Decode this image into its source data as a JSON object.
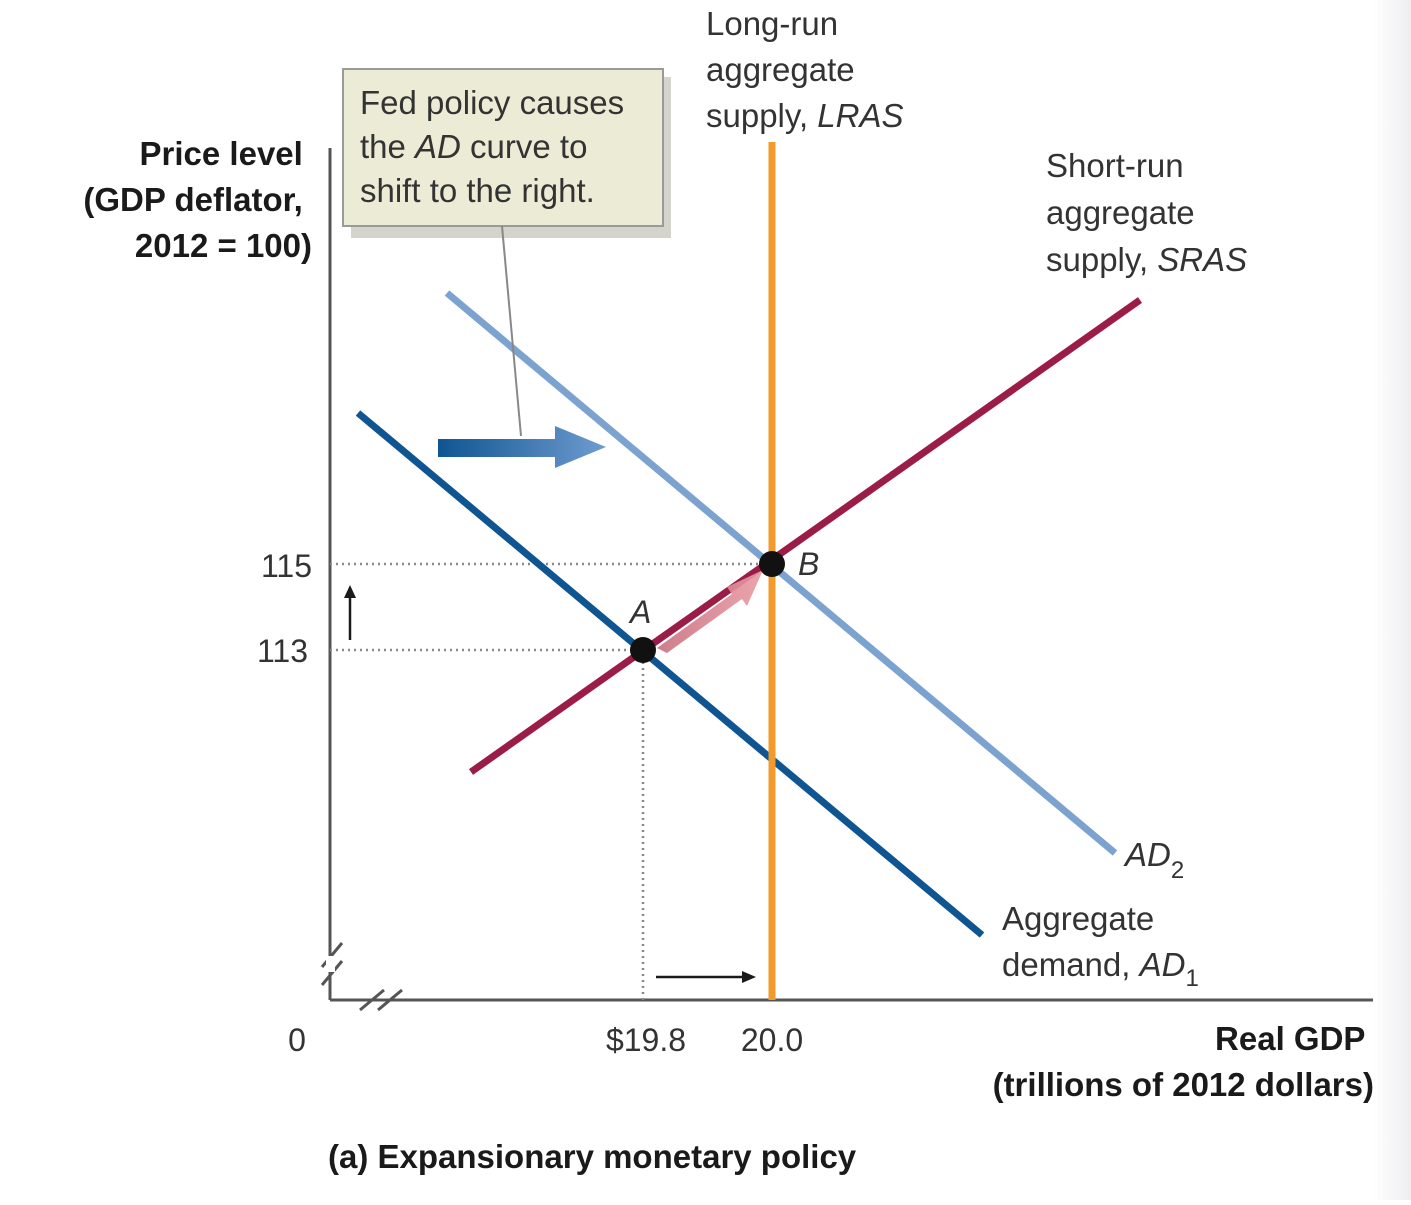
{
  "chart_data": {
    "type": "line",
    "title": "(a) Expansionary monetary policy",
    "xlabel": [
      "Real GDP",
      "(trillions of 2012 dollars)"
    ],
    "ylabel": [
      "Price level",
      "(GDP deflator,",
      "2012 = 100)"
    ],
    "origin_label": "0",
    "x_ticks": [
      {
        "value": 19.8,
        "label": "$19.8"
      },
      {
        "value": 20.0,
        "label": "20.0"
      }
    ],
    "y_ticks": [
      {
        "value": 113,
        "label": "113"
      },
      {
        "value": 115,
        "label": "115"
      }
    ],
    "points": [
      {
        "name": "A",
        "x": 19.8,
        "y": 113
      },
      {
        "name": "B",
        "x": 20.0,
        "y": 115
      }
    ],
    "series": [
      {
        "key": "lras",
        "name": "Long-run aggregate supply, LRAS",
        "label_lines": [
          "Long-run",
          "aggregate",
          "supply, LRAS"
        ],
        "color": "#f29b2b"
      },
      {
        "key": "sras",
        "name": "Short-run aggregate supply, SRAS",
        "label_lines": [
          "Short-run",
          "aggregate",
          "supply, SRAS"
        ],
        "color": "#9b1c46"
      },
      {
        "key": "ad1",
        "name": "Aggregate demand, AD1",
        "label_lines": [
          "Aggregate",
          "demand, AD1"
        ],
        "color": "#0f5592"
      },
      {
        "key": "ad2",
        "name": "AD2",
        "label_lines": [
          "AD2"
        ],
        "color": "#7ca2cf"
      }
    ],
    "annotation": {
      "lines": [
        "Fed policy causes",
        "the AD curve to",
        "shift to the right."
      ],
      "background": "#ececd6",
      "border": "#9a9a9a"
    },
    "axis_breaks": true,
    "grid": false,
    "legend": "none"
  }
}
